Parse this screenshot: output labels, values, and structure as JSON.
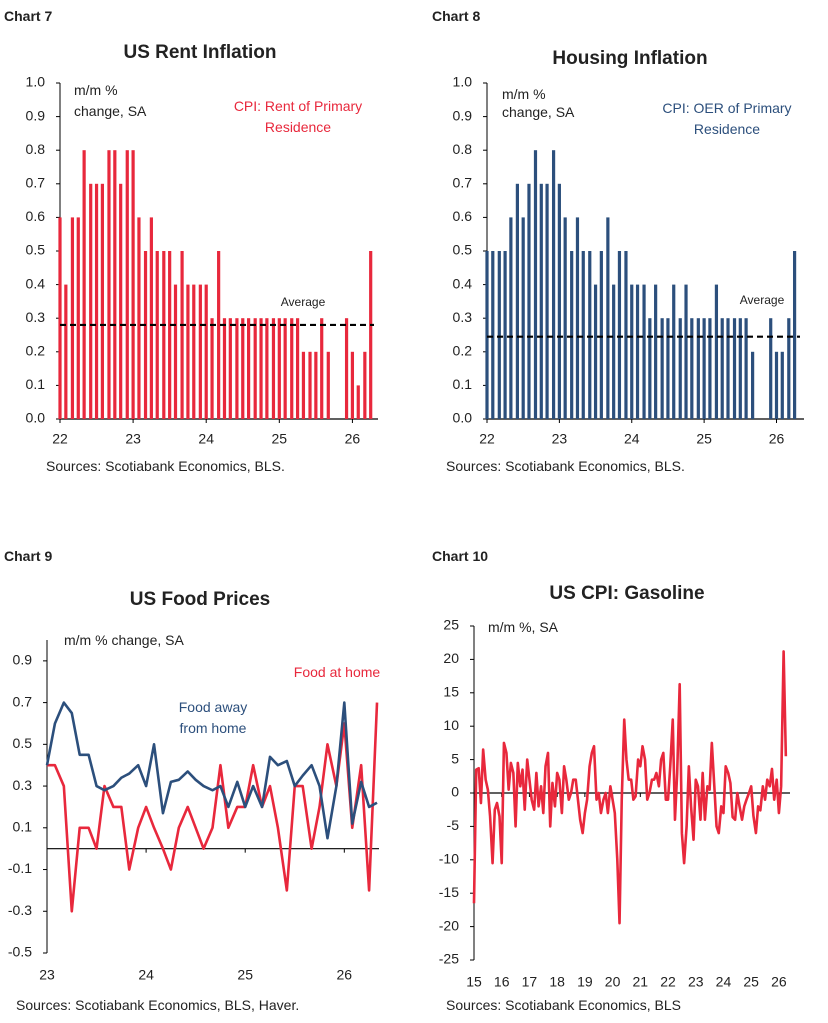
{
  "chart_data": [
    {
      "type": "bar",
      "label": "Chart 7",
      "title": "US Rent Inflation",
      "note": [
        "m/m %",
        "change, SA"
      ],
      "source": "Sources: Scotiabank Economics, BLS.",
      "average": 0.28,
      "average_label": "Average",
      "xlim": [
        22,
        26.35
      ],
      "xticks": [
        22,
        23,
        24,
        25,
        26
      ],
      "ylim": [
        0,
        1
      ],
      "yticks": [
        {
          "value": 0,
          "label": "0.0"
        },
        0.1,
        0.2,
        0.3,
        0.4,
        0.5,
        0.6,
        0.7,
        0.8,
        0.9,
        {
          "value": 1,
          "label": "1.0"
        }
      ],
      "x": [
        22,
        22.08,
        22.17,
        22.25,
        22.33,
        22.42,
        22.5,
        22.58,
        22.67,
        22.75,
        22.83,
        22.92,
        23,
        23.08,
        23.17,
        23.25,
        23.33,
        23.42,
        23.5,
        23.58,
        23.67,
        23.75,
        23.83,
        23.92,
        24,
        24.08,
        24.17,
        24.25,
        24.33,
        24.42,
        24.5,
        24.58,
        24.67,
        24.75,
        24.83,
        24.92,
        25,
        25.08,
        25.17,
        25.25,
        25.33,
        25.42,
        25.5,
        25.58,
        25.67,
        25.75,
        25.83,
        25.92,
        26,
        26.08,
        26.17,
        26.25
      ],
      "series": [
        {
          "name": "CPI: Rent of Primary Residence",
          "color": "#e8283c",
          "values": [
            0.6,
            0.4,
            0.6,
            0.6,
            0.8,
            0.7,
            0.7,
            0.7,
            0.8,
            0.8,
            0.7,
            0.8,
            0.8,
            0.6,
            0.5,
            0.6,
            0.5,
            0.5,
            0.5,
            0.4,
            0.5,
            0.4,
            0.4,
            0.4,
            0.4,
            0.3,
            0.5,
            0.3,
            0.3,
            0.3,
            0.3,
            0.3,
            0.3,
            0.3,
            0.3,
            0.3,
            0.3,
            0.3,
            0.3,
            0.3,
            0.2,
            0.2,
            0.2,
            0.3,
            0.2,
            null,
            null,
            0.3,
            0.2,
            0.1,
            0.2,
            0.5
          ]
        }
      ]
    },
    {
      "type": "bar",
      "label": "Chart 8",
      "title": "Housing Inflation",
      "note": [
        "m/m %",
        "change, SA"
      ],
      "source": "Sources: Scotiabank Economics, BLS.",
      "average": 0.245,
      "average_label": "Average",
      "xlim": [
        22,
        26.38
      ],
      "xticks": [
        22,
        23,
        24,
        25,
        26
      ],
      "ylim": [
        0,
        1
      ],
      "yticks": [
        {
          "value": 0,
          "label": "0.0"
        },
        0.1,
        0.2,
        0.3,
        0.4,
        0.5,
        0.6,
        0.7,
        0.8,
        0.9,
        {
          "value": 1,
          "label": "1.0"
        }
      ],
      "x": [
        22,
        22.08,
        22.17,
        22.25,
        22.33,
        22.42,
        22.5,
        22.58,
        22.67,
        22.75,
        22.83,
        22.92,
        23,
        23.08,
        23.17,
        23.25,
        23.33,
        23.42,
        23.5,
        23.58,
        23.67,
        23.75,
        23.83,
        23.92,
        24,
        24.08,
        24.17,
        24.25,
        24.33,
        24.42,
        24.5,
        24.58,
        24.67,
        24.75,
        24.83,
        24.92,
        25,
        25.08,
        25.17,
        25.25,
        25.33,
        25.42,
        25.5,
        25.58,
        25.67,
        25.75,
        25.83,
        25.92,
        26,
        26.08,
        26.17,
        26.25
      ],
      "series": [
        {
          "name": "CPI: OER of Primary Residence",
          "color": "#2c4f7c",
          "values": [
            0.5,
            0.5,
            0.5,
            0.5,
            0.6,
            0.7,
            0.6,
            0.7,
            0.8,
            0.7,
            0.7,
            0.8,
            0.7,
            0.6,
            0.5,
            0.6,
            0.5,
            0.5,
            0.4,
            0.5,
            0.6,
            0.4,
            0.5,
            0.5,
            0.4,
            0.4,
            0.4,
            0.3,
            0.4,
            0.3,
            0.3,
            0.4,
            0.3,
            0.4,
            0.3,
            0.3,
            0.3,
            0.3,
            0.4,
            0.3,
            0.3,
            0.3,
            0.3,
            0.3,
            0.2,
            null,
            null,
            0.3,
            0.2,
            0.2,
            0.3,
            0.5
          ]
        }
      ]
    },
    {
      "type": "line",
      "label": "Chart 9",
      "title": "US Food Prices",
      "note": "m/m % change, SA",
      "source": "Sources: Scotiabank Economics, BLS, Haver.",
      "xlim": [
        23,
        26.35
      ],
      "xticks": [
        23,
        24,
        25,
        26
      ],
      "ylim": [
        -0.5,
        1
      ],
      "yticks": [
        -0.5,
        -0.3,
        -0.1,
        0.1,
        0.3,
        0.5,
        0.7,
        0.9
      ],
      "x": [
        23,
        23.08,
        23.17,
        23.25,
        23.33,
        23.42,
        23.5,
        23.58,
        23.67,
        23.75,
        23.83,
        23.92,
        24,
        24.08,
        24.17,
        24.25,
        24.33,
        24.42,
        24.5,
        24.58,
        24.67,
        24.75,
        24.83,
        24.92,
        25,
        25.08,
        25.17,
        25.25,
        25.33,
        25.42,
        25.5,
        25.58,
        25.67,
        25.75,
        25.83,
        25.92,
        26,
        26.08,
        26.17,
        26.25,
        26.33
      ],
      "series": [
        {
          "name": "Food at home",
          "color": "#e8283c",
          "values": [
            0.4,
            0.4,
            0.3,
            -0.3,
            0.1,
            0.1,
            0.0,
            0.3,
            0.2,
            0.2,
            -0.1,
            0.1,
            0.2,
            0.1,
            0.0,
            -0.1,
            0.1,
            0.2,
            0.1,
            0.0,
            0.1,
            0.4,
            0.1,
            0.2,
            0.2,
            0.4,
            0.2,
            0.3,
            0.1,
            -0.2,
            0.3,
            0.3,
            0.0,
            0.2,
            0.5,
            0.3,
            0.6,
            0.1,
            0.4,
            -0.2,
            0.7
          ]
        },
        {
          "name": "Food away from home",
          "color": "#2c4f7c",
          "values": [
            0.4,
            0.6,
            0.7,
            0.65,
            0.45,
            0.45,
            0.3,
            0.28,
            0.3,
            0.34,
            0.36,
            0.4,
            0.3,
            0.5,
            0.17,
            0.32,
            0.33,
            0.37,
            0.33,
            0.3,
            0.28,
            0.3,
            0.2,
            0.32,
            0.2,
            0.3,
            0.2,
            0.44,
            0.4,
            0.42,
            0.3,
            0.35,
            0.4,
            0.3,
            0.05,
            0.3,
            0.7,
            0.12,
            0.32,
            0.2,
            0.22
          ]
        }
      ]
    },
    {
      "type": "line",
      "label": "Chart 10",
      "title": "US CPI: Gasoline",
      "note": "m/m %, SA",
      "source": "Sources: Scotiabank Economics, BLS",
      "xlim": [
        15,
        26.4
      ],
      "xticks": [
        15,
        16,
        17,
        18,
        19,
        20,
        21,
        22,
        23,
        24,
        25,
        26
      ],
      "ylim": [
        -25,
        25
      ],
      "yticks": [
        -25,
        -20,
        -15,
        -10,
        -5,
        0,
        5,
        10,
        15,
        20,
        25
      ],
      "x": [
        15,
        15.08,
        15.17,
        15.25,
        15.33,
        15.42,
        15.5,
        15.58,
        15.67,
        15.75,
        15.83,
        15.92,
        16,
        16.08,
        16.17,
        16.25,
        16.33,
        16.42,
        16.5,
        16.58,
        16.67,
        16.75,
        16.83,
        16.92,
        17,
        17.08,
        17.17,
        17.25,
        17.33,
        17.42,
        17.5,
        17.58,
        17.67,
        17.75,
        17.83,
        17.92,
        18,
        18.08,
        18.17,
        18.25,
        18.33,
        18.42,
        18.5,
        18.58,
        18.67,
        18.75,
        18.83,
        18.92,
        19,
        19.08,
        19.17,
        19.25,
        19.33,
        19.42,
        19.5,
        19.58,
        19.67,
        19.75,
        19.83,
        19.92,
        20,
        20.08,
        20.17,
        20.25,
        20.33,
        20.42,
        20.5,
        20.58,
        20.67,
        20.75,
        20.83,
        20.92,
        21,
        21.08,
        21.17,
        21.25,
        21.33,
        21.42,
        21.5,
        21.58,
        21.67,
        21.75,
        21.83,
        21.92,
        22,
        22.08,
        22.17,
        22.25,
        22.33,
        22.42,
        22.5,
        22.58,
        22.67,
        22.75,
        22.83,
        22.92,
        23,
        23.08,
        23.17,
        23.25,
        23.33,
        23.42,
        23.5,
        23.58,
        23.67,
        23.75,
        23.83,
        23.92,
        24,
        24.08,
        24.17,
        24.25,
        24.33,
        24.42,
        24.5,
        24.58,
        24.67,
        24.75,
        24.83,
        24.92,
        25,
        25.08,
        25.17,
        25.25,
        25.33,
        25.42,
        25.5,
        25.58,
        25.67,
        25.75,
        25.83,
        25.92,
        26,
        26.08,
        26.17,
        26.25
      ],
      "series": [
        {
          "color": "#e8283c",
          "values": [
            -16.5,
            3.5,
            3.7,
            -1.5,
            6.5,
            2,
            0.5,
            -3.5,
            -10.5,
            -2.5,
            -1.5,
            -3.5,
            -10.5,
            7.5,
            6,
            0.5,
            4.5,
            3,
            -5,
            4.5,
            1,
            3.5,
            -2.5,
            5,
            2,
            -1,
            -2.5,
            3,
            -2,
            1,
            -3,
            4,
            6,
            -5,
            1.5,
            -2,
            3,
            2,
            -3,
            4,
            2,
            -1,
            0,
            2,
            2,
            -1,
            -4,
            -6,
            -3,
            -1,
            4,
            6,
            7,
            -1,
            0,
            -3,
            -1,
            0,
            -3,
            1,
            -1,
            -3,
            -10,
            -19.5,
            -1,
            11,
            5,
            2,
            2,
            -1,
            -0.5,
            5,
            4,
            7,
            5,
            -1,
            0,
            2,
            2,
            3,
            1,
            5,
            6,
            -1,
            -1,
            4,
            11,
            -4,
            3,
            16.3,
            -6,
            -10.5,
            -5,
            4,
            -2,
            -7,
            2,
            1,
            -4,
            3,
            -4,
            1,
            0.5,
            7.5,
            1,
            -5,
            -6,
            -2,
            -3,
            4,
            3,
            1.5,
            -3.6,
            -4,
            0,
            -2,
            -4,
            -2,
            -1,
            0,
            1,
            -3.4,
            -6,
            -2,
            -2.6,
            1,
            -1,
            2,
            1,
            3.6,
            -1,
            2,
            -3,
            1,
            21.2,
            5.5
          ]
        }
      ]
    }
  ]
}
